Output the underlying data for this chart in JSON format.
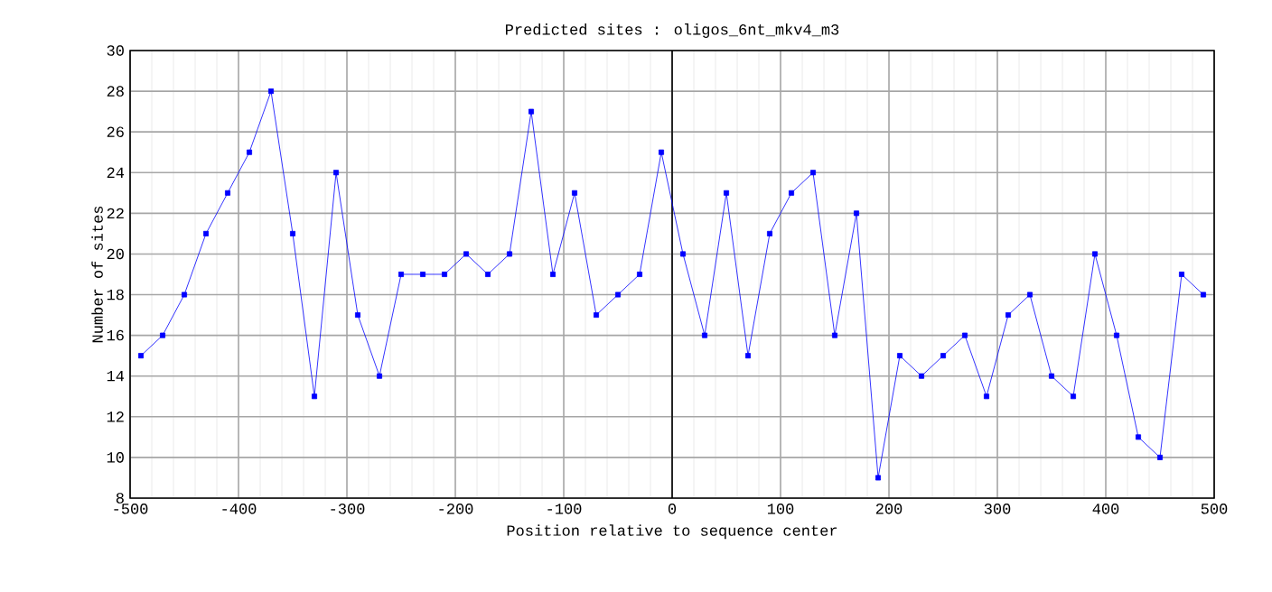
{
  "chart_data": {
    "type": "line",
    "title": "Predicted sites : oligos_6nt_mkv4_m3",
    "xlabel": "Position relative to sequence center",
    "ylabel": "Number of sites",
    "x": [
      -490,
      -470,
      -450,
      -430,
      -410,
      -390,
      -370,
      -350,
      -330,
      -310,
      -290,
      -270,
      -250,
      -230,
      -210,
      -190,
      -170,
      -150,
      -130,
      -110,
      -90,
      -70,
      -50,
      -30,
      -10,
      10,
      30,
      50,
      70,
      90,
      110,
      130,
      150,
      170,
      190,
      210,
      230,
      250,
      270,
      290,
      310,
      330,
      350,
      370,
      390,
      410,
      430,
      450,
      470,
      490
    ],
    "series": [
      {
        "color": "#0000ff",
        "values": [
          15,
          16,
          18,
          21,
          23,
          25,
          28,
          21,
          13,
          24,
          17,
          14,
          19,
          19,
          19,
          20,
          19,
          20,
          27,
          19,
          23,
          17,
          18,
          19,
          25,
          20,
          16,
          23,
          15,
          21,
          23,
          24,
          16,
          22,
          9,
          15,
          14,
          15,
          16,
          13,
          17,
          18,
          14,
          13,
          20,
          16,
          11,
          10,
          19,
          18
        ]
      }
    ],
    "xlim": [
      -500,
      500
    ],
    "xticks": [
      -500,
      -400,
      -300,
      -200,
      -100,
      0,
      100,
      200,
      300,
      400,
      500
    ],
    "ylim": [
      8,
      30
    ],
    "yticks": [
      8,
      10,
      12,
      14,
      16,
      18,
      20,
      22,
      24,
      26,
      28,
      30
    ],
    "ref_lines": [
      {
        "axis": "x",
        "value": 0,
        "color": "#000000"
      }
    ],
    "grid": true,
    "marker": "square",
    "line_style": "solid"
  }
}
